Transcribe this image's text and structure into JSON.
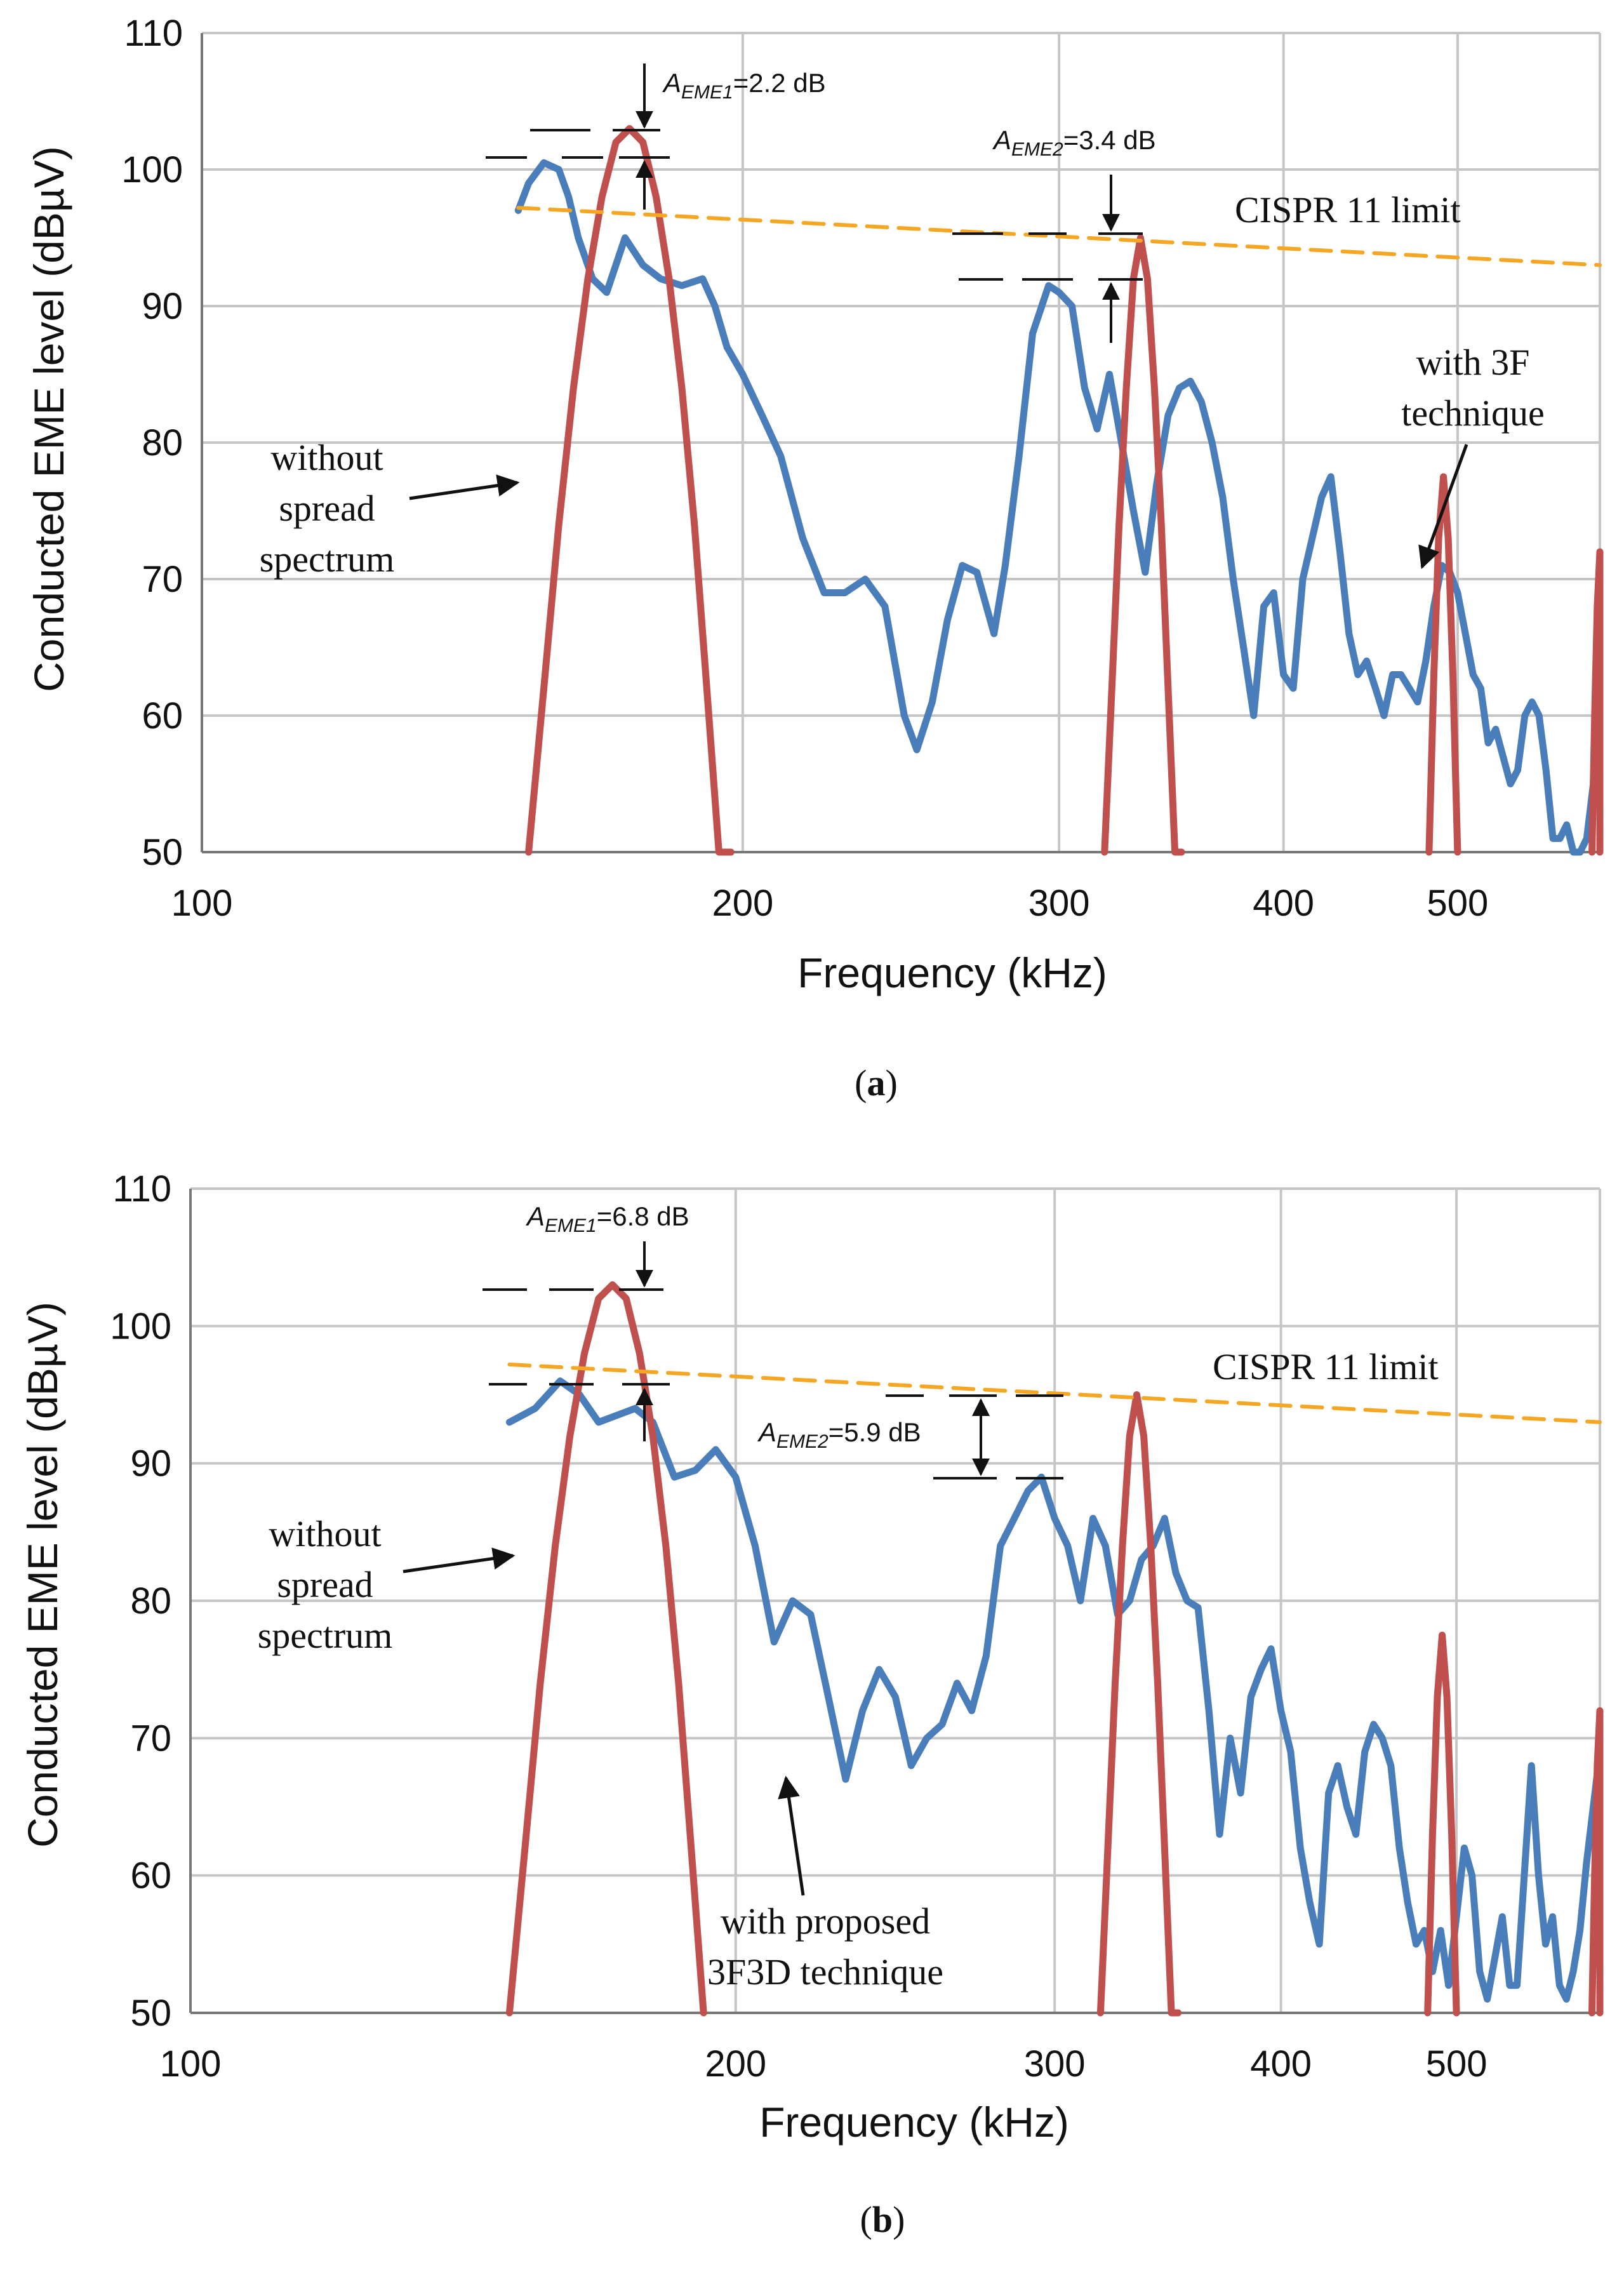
{
  "colors": {
    "eme_ss": "#4a7ebb",
    "no_ss": "#c0504d",
    "limit": "#f5a623",
    "grid": "#c6c6c6",
    "text": "#111111"
  },
  "chart_data": [
    {
      "type": "line",
      "panel": "(a)",
      "xscale": "log",
      "xlim": [
        100,
        600
      ],
      "ylim": [
        50,
        110
      ],
      "xlabel": "Frequency (kHz)",
      "ylabel": "Conducted EME level (dBµV)",
      "xticks": [
        "100",
        "200",
        "300",
        "400",
        "500"
      ],
      "yticks": [
        "50",
        "60",
        "70",
        "80",
        "90",
        "100",
        "110"
      ],
      "series": [
        {
          "name": "with 3F technique",
          "color": "#4a7ebb",
          "x": [
            150,
            152,
            155,
            158,
            160,
            162,
            165,
            168,
            172,
            176,
            180,
            185,
            190,
            193,
            196,
            200,
            205,
            210,
            216,
            222,
            228,
            234,
            240,
            246,
            250,
            255,
            260,
            265,
            270,
            276,
            280,
            285,
            290,
            296,
            300,
            305,
            310,
            315,
            320,
            325,
            330,
            335,
            340,
            345,
            350,
            355,
            360,
            365,
            370,
            375,
            380,
            385,
            390,
            395,
            400,
            405,
            410,
            415,
            420,
            425,
            430,
            435,
            440,
            445,
            450,
            455,
            460,
            465,
            470,
            475,
            480,
            485,
            490,
            495,
            500,
            505,
            510,
            515,
            520,
            525,
            530,
            535,
            540,
            545,
            550,
            555,
            560,
            565,
            570,
            575,
            580,
            585,
            590,
            595,
            600
          ],
          "y": [
            97,
            99,
            100.5,
            100,
            98,
            95,
            92,
            91,
            95,
            93,
            92,
            91.5,
            92,
            90,
            87,
            85,
            82,
            79,
            73,
            69,
            69,
            70,
            68,
            60,
            57.5,
            61,
            67,
            71,
            70.5,
            66,
            71,
            79,
            88,
            91.5,
            91,
            90,
            84,
            81,
            85,
            80,
            75,
            70.5,
            77,
            82,
            84,
            84.5,
            83,
            80,
            76,
            70,
            65,
            60,
            68,
            69,
            63,
            62,
            70,
            73,
            76,
            77.5,
            72,
            66,
            63,
            64,
            62,
            60,
            63,
            63,
            62,
            61,
            64,
            68,
            71,
            70.5,
            69,
            66,
            63,
            62,
            58,
            59,
            57,
            55,
            56,
            60,
            61,
            60,
            56,
            51,
            51,
            52,
            50,
            49.5,
            51,
            55,
            68
          ]
        },
        {
          "name": "without spread spectrum",
          "color": "#c0504d",
          "x": [
            152,
            155,
            158,
            161,
            164,
            167,
            170,
            173,
            176,
            179,
            182,
            185,
            188,
            191,
            194,
            197,
            null,
            318,
            321,
            324,
            327,
            330,
            333,
            336,
            339,
            342,
            345,
            348,
            351,
            null,
            482,
            485,
            488,
            491,
            494,
            497,
            500,
            null,
            594,
            596,
            598,
            600,
            602,
            604,
            606
          ],
          "y": [
            50,
            62,
            74,
            84,
            92,
            98,
            102,
            103,
            102,
            98,
            92,
            84,
            74,
            62,
            50,
            50,
            null,
            50,
            62,
            74,
            84,
            92,
            95,
            92,
            84,
            74,
            62,
            50,
            50,
            null,
            50,
            63,
            73,
            77.5,
            73,
            63,
            50,
            null,
            50,
            60,
            68,
            72,
            68,
            60,
            50
          ]
        },
        {
          "name": "CISPR 11 limit",
          "color": "#f5a623",
          "x": [
            150,
            600
          ],
          "y": [
            97.2,
            93
          ]
        }
      ],
      "annotations": [
        "AEME1=2.2 dB",
        "AEME2=3.4 dB",
        "CISPR 11 limit",
        "without spread spectrum",
        "with 3F technique"
      ]
    },
    {
      "type": "line",
      "panel": "(b)",
      "xscale": "log",
      "xlim": [
        100,
        600
      ],
      "ylim": [
        50,
        110
      ],
      "xlabel": "Frequency (kHz)",
      "ylabel": "Conducted EME level (dBµV)",
      "xticks": [
        "100",
        "200",
        "300",
        "400",
        "500"
      ],
      "yticks": [
        "50",
        "60",
        "70",
        "80",
        "90",
        "100",
        "110"
      ],
      "series": [
        {
          "name": "with proposed 3F3D technique",
          "color": "#4a7ebb",
          "x": [
            150,
            155,
            160,
            164,
            168,
            172,
            176,
            180,
            185,
            190,
            195,
            200,
            205,
            210,
            215,
            220,
            225,
            230,
            235,
            240,
            245,
            250,
            255,
            260,
            265,
            270,
            275,
            280,
            285,
            290,
            295,
            300,
            305,
            310,
            315,
            320,
            325,
            330,
            335,
            340,
            345,
            350,
            355,
            360,
            365,
            370,
            375,
            380,
            385,
            390,
            395,
            400,
            405,
            410,
            415,
            420,
            425,
            430,
            435,
            440,
            445,
            450,
            455,
            460,
            465,
            470,
            475,
            480,
            485,
            490,
            495,
            500,
            505,
            510,
            515,
            520,
            525,
            530,
            535,
            540,
            545,
            550,
            555,
            560,
            565,
            570,
            575,
            580,
            585,
            590,
            595,
            600
          ],
          "y": [
            93,
            94,
            96,
            95,
            93,
            93.5,
            94,
            93,
            89,
            89.5,
            91,
            89,
            84,
            77,
            80,
            79,
            73,
            67,
            72,
            75,
            73,
            68,
            70,
            71,
            74,
            72,
            76,
            84,
            86,
            88,
            89,
            86,
            84,
            80,
            86,
            84,
            79,
            80,
            83,
            84,
            86,
            82,
            80,
            79.5,
            72,
            63,
            70,
            66,
            73,
            75,
            76.5,
            72,
            69,
            62,
            58,
            55,
            66,
            68,
            65,
            63,
            69,
            71,
            70,
            68,
            62,
            58,
            55,
            56,
            53,
            56,
            52,
            57,
            62,
            60,
            53,
            51,
            54,
            57,
            52,
            52,
            60,
            68,
            60,
            55,
            57,
            52,
            51,
            53,
            56,
            61,
            65,
            69
          ]
        },
        {
          "name": "without spread spectrum",
          "color": "#c0504d",
          "x": [
            150,
            153,
            156,
            159,
            162,
            165,
            168,
            171,
            174,
            177,
            180,
            183,
            186,
            189,
            192,
            null,
            318,
            321,
            324,
            327,
            330,
            333,
            336,
            339,
            342,
            345,
            348,
            351,
            null,
            482,
            485,
            488,
            491,
            494,
            497,
            500,
            null,
            594,
            596,
            598,
            600,
            602,
            604,
            606
          ],
          "y": [
            50,
            62,
            74,
            84,
            92,
            98,
            102,
            103,
            102,
            98,
            92,
            84,
            74,
            62,
            50,
            null,
            50,
            62,
            74,
            84,
            92,
            95,
            92,
            84,
            74,
            62,
            50,
            50,
            null,
            50,
            63,
            73,
            77.5,
            73,
            63,
            50,
            null,
            50,
            60,
            68,
            72,
            68,
            60,
            50
          ]
        },
        {
          "name": "CISPR 11 limit",
          "color": "#f5a623",
          "x": [
            150,
            600
          ],
          "y": [
            97.2,
            93
          ]
        }
      ],
      "annotations": [
        "AEME1=6.8 dB",
        "AEME2=5.9 dB",
        "CISPR 11 limit",
        "without spread spectrum",
        "with proposed 3F3D technique"
      ]
    }
  ],
  "panel_a": {
    "label": "(a)",
    "aeme1_sub": "EME1",
    "aeme1_val": "=2.2 dB",
    "aeme2_sub": "EME2",
    "aeme2_val": "=3.4 dB",
    "limit_label": "CISPR 11 limit",
    "without_l1": "without",
    "without_l2": "spread",
    "without_l3": "spectrum",
    "with_l1": "with 3F",
    "with_l2": "technique"
  },
  "panel_b": {
    "label": "(b)",
    "aeme1_sub": "EME1",
    "aeme1_val": "=6.8 dB",
    "aeme2_sub": "EME2",
    "aeme2_val": "=5.9 dB",
    "limit_label": "CISPR 11 limit",
    "without_l1": "without",
    "without_l2": "spread",
    "without_l3": "spectrum",
    "with_l1": "with proposed",
    "with_l2": "3F3D technique"
  },
  "a_letter": "A"
}
